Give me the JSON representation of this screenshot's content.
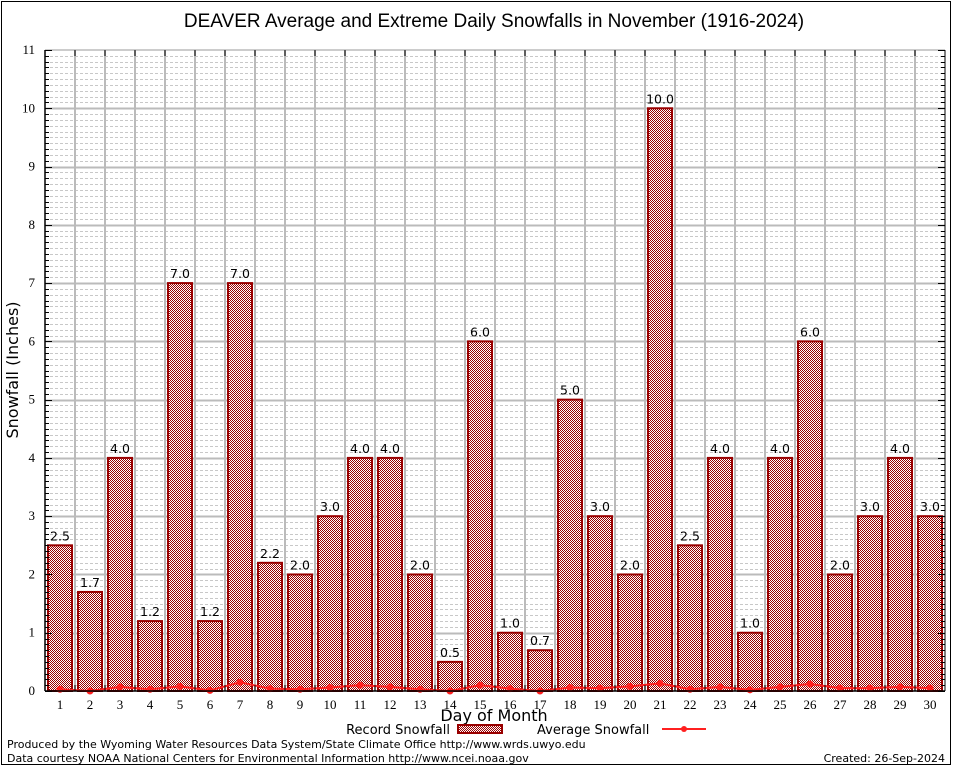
{
  "chart_data": {
    "type": "bar",
    "title": "DEAVER Average and Extreme Daily Snowfalls in November (1916-2024)",
    "xlabel": "Day of Month",
    "ylabel": "Snowfall (Inches)",
    "ylim": [
      0,
      11
    ],
    "yticks": [
      "0",
      "1",
      "2",
      "3",
      "4",
      "5",
      "6",
      "7",
      "8",
      "9",
      "10",
      "11"
    ],
    "grid": true,
    "categories": [
      "1",
      "2",
      "3",
      "4",
      "5",
      "6",
      "7",
      "8",
      "9",
      "10",
      "11",
      "12",
      "13",
      "14",
      "15",
      "16",
      "17",
      "18",
      "19",
      "20",
      "21",
      "22",
      "23",
      "24",
      "25",
      "26",
      "27",
      "28",
      "29",
      "30"
    ],
    "series": [
      {
        "name": "Record Snowfall",
        "type": "bar",
        "color": "#990000",
        "values": [
          2.5,
          1.7,
          4.0,
          1.2,
          7.0,
          1.2,
          7.0,
          2.2,
          2.0,
          3.0,
          4.0,
          4.0,
          2.0,
          0.5,
          6.0,
          1.0,
          0.7,
          5.0,
          3.0,
          2.0,
          10.0,
          2.5,
          4.0,
          1.0,
          4.0,
          6.0,
          2.0,
          3.0,
          4.0,
          3.0
        ],
        "labels": [
          "2.5",
          "1.7",
          "4.0",
          "1.2",
          "7.0",
          "1.2",
          "7.0",
          "2.2",
          "2.0",
          "3.0",
          "4.0",
          "4.0",
          "2.0",
          "0.5",
          "6.0",
          "1.0",
          "0.7",
          "5.0",
          "3.0",
          "2.0",
          "10.0",
          "2.5",
          "4.0",
          "1.0",
          "4.0",
          "6.0",
          "2.0",
          "3.0",
          "4.0",
          "3.0"
        ]
      },
      {
        "name": "Average Snowfall",
        "type": "line",
        "color": "#ff2020",
        "values": [
          0.03,
          0.0,
          0.07,
          0.03,
          0.08,
          0.01,
          0.15,
          0.04,
          0.03,
          0.06,
          0.1,
          0.07,
          0.03,
          0.0,
          0.1,
          0.04,
          0.0,
          0.06,
          0.05,
          0.08,
          0.13,
          0.03,
          0.07,
          0.02,
          0.07,
          0.12,
          0.05,
          0.05,
          0.07,
          0.05
        ]
      }
    ],
    "legend": "bottom-center"
  },
  "footer": {
    "line1": "Produced by the Wyoming Water Resources Data System/State Climate Office http://www.wrds.uwyo.edu",
    "line2": "Data courtesy NOAA National Centers for Environmental Information http://www.ncei.noaa.gov",
    "created": "Created:  26-Sep-2024"
  }
}
